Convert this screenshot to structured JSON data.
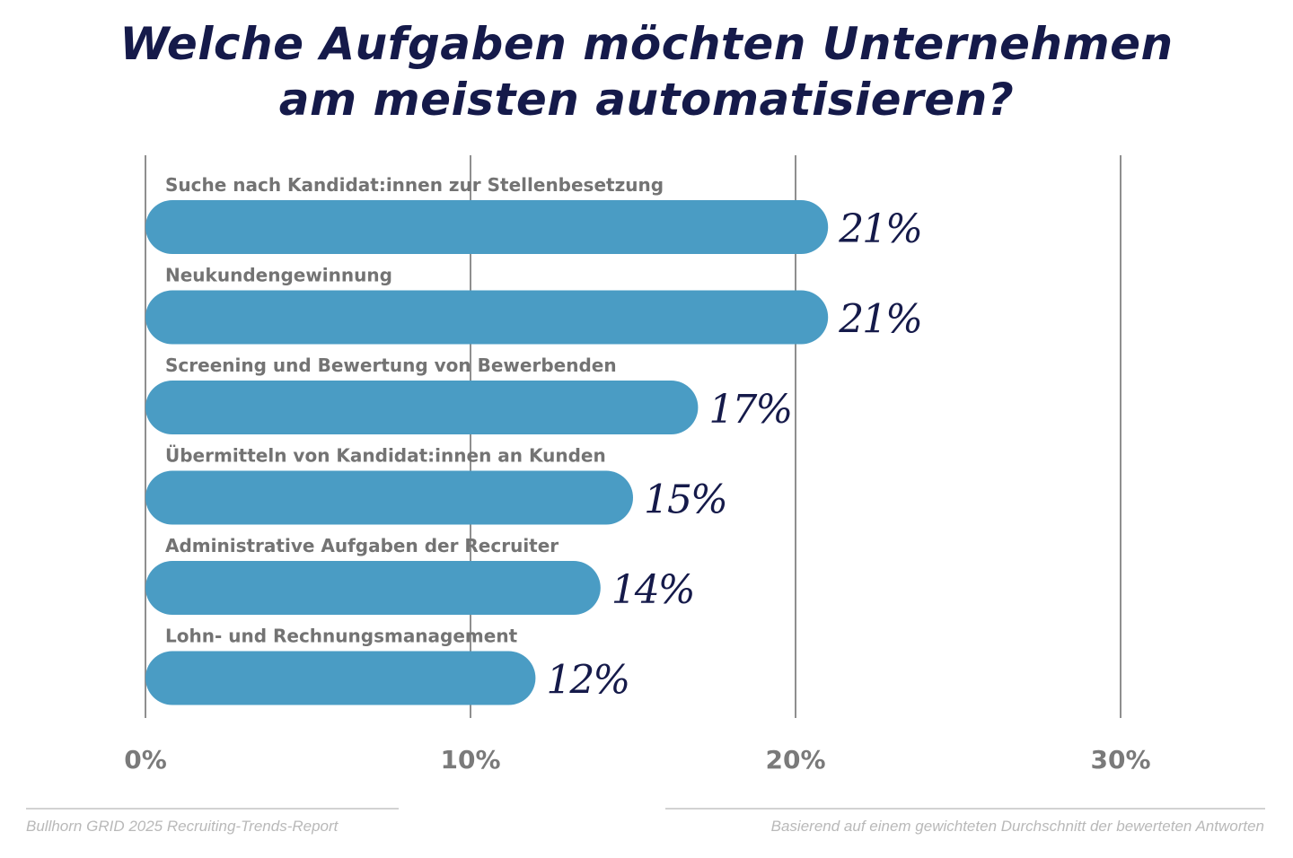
{
  "title_line1": "Welche Aufgaben möchten Unternehmen",
  "title_line2": "am meisten automatisieren?",
  "chart_data": {
    "type": "bar",
    "orientation": "horizontal",
    "title": "Welche Aufgaben möchten Unternehmen am meisten automatisieren?",
    "categories": [
      "Suche nach Kandidat:innen zur Stellenbesetzung",
      "Neukundengewinnung",
      "Screening und Bewertung von Bewerbenden",
      "Übermitteln von Kandidat:innen an Kunden",
      "Administrative Aufgaben der Recruiter",
      "Lohn- und Rechnungsmanagement"
    ],
    "values": [
      21,
      21,
      17,
      15,
      14,
      12
    ],
    "value_labels": [
      "21%",
      "21%",
      "17%",
      "15%",
      "14%",
      "12%"
    ],
    "xlim": [
      0,
      30
    ],
    "xticks": [
      0,
      10,
      20,
      30
    ],
    "xtick_labels": [
      "0%",
      "10%",
      "20%",
      "30%"
    ],
    "xlabel": "",
    "ylabel": "",
    "grid": true,
    "colors": {
      "bar": "#4a9cc4",
      "value_label": "#151a4a",
      "category_label": "#737373",
      "tick_label": "#7a7a7a",
      "grid": "#8f8f8f"
    }
  },
  "footer": {
    "source": "Bullhorn GRID 2025 Recruiting-Trends-Report",
    "note": "Basierend auf einem gewichteten Durchschnitt der bewerteten Antworten"
  }
}
